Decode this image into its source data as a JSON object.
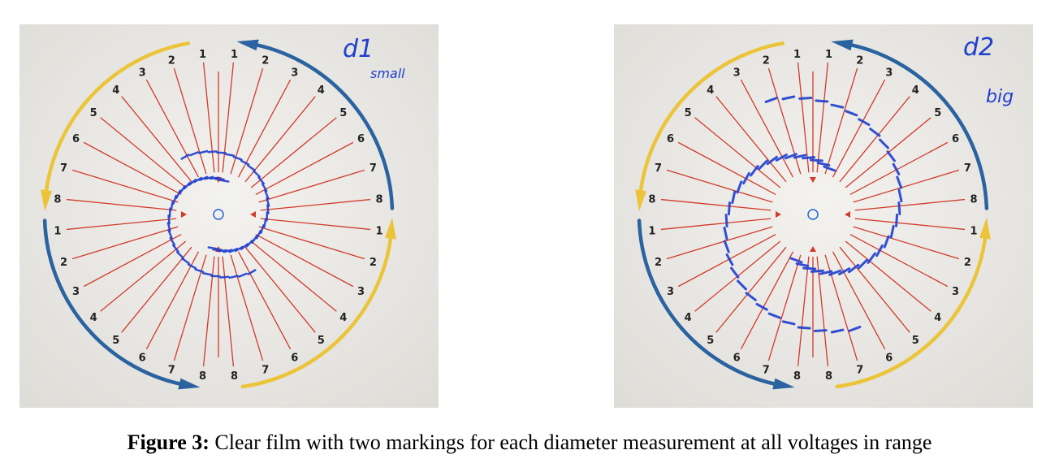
{
  "figure": {
    "label": "Figure 3:",
    "caption": "Clear film with two markings for each diameter measurement at all voltages in range"
  },
  "panels": [
    {
      "id": "left",
      "annotation": [
        "d1",
        "small"
      ],
      "right_numbers": [
        "1",
        "2",
        "3",
        "4",
        "5",
        "6",
        "7",
        "8",
        "1",
        "2",
        "3",
        "4",
        "5",
        "6",
        "7",
        "8"
      ],
      "left_numbers": [
        "1",
        "2",
        "3",
        "4",
        "5",
        "6",
        "7",
        "8",
        "1",
        "2",
        "3",
        "4",
        "5",
        "6",
        "7",
        "8"
      ],
      "marking_size": "small"
    },
    {
      "id": "right",
      "annotation": [
        "d2",
        "big"
      ],
      "right_numbers": [
        "1",
        "2",
        "3",
        "4",
        "5",
        "6",
        "7",
        "8",
        "1",
        "2",
        "3",
        "4",
        "5",
        "6",
        "7",
        "8"
      ],
      "left_numbers": [
        "1",
        "2",
        "3",
        "4",
        "5",
        "6",
        "7",
        "8",
        "1",
        "2",
        "3",
        "4",
        "5",
        "6",
        "7",
        "8"
      ],
      "marking_size": "big"
    }
  ],
  "colors": {
    "paper": "#ecebe8",
    "red_line": "#d23a2a",
    "blue_arrow": "#2a63a0",
    "yellow_arrow": "#ecc43a",
    "pen": "#1f3fcf",
    "center": "#1d5fd0"
  }
}
